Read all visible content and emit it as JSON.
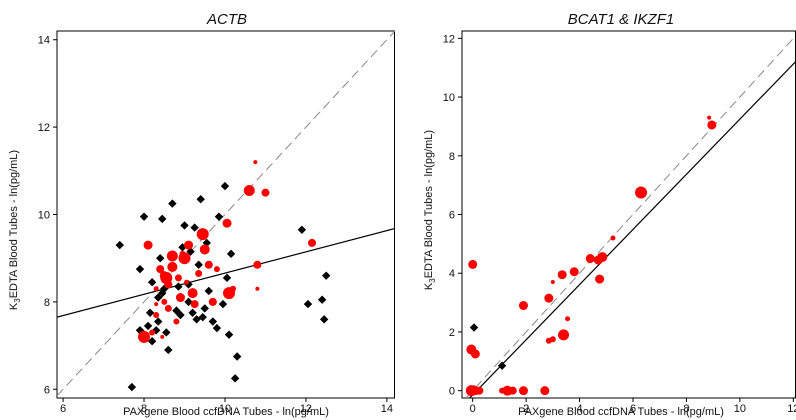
{
  "chart_data": [
    {
      "type": "scatter",
      "title": "ACTB",
      "xlabel": "PAXgene Blood ccfDNA Tubes - ln(pg/mL)",
      "ylabel_parts": [
        "K",
        "3",
        "EDTA Blood Tubes - ln(pg/mL)"
      ],
      "xlim": [
        5.85,
        14.2
      ],
      "ylim": [
        5.8,
        14.2
      ],
      "xticks": [
        6,
        8,
        10,
        12,
        14
      ],
      "yticks": [
        6,
        8,
        10,
        12,
        14
      ],
      "tick_labels_x": [
        "6",
        "8",
        "10",
        "12",
        "14"
      ],
      "tick_labels_y": [
        "6",
        "8",
        "10",
        "12",
        "14"
      ],
      "identity_line": true,
      "regression_line": [
        [
          5.85,
          7.65
        ],
        [
          14.2,
          9.68
        ]
      ],
      "colors": {
        "group_black": "#000000",
        "group_red": "#ff0000",
        "identity": "#888888"
      },
      "series": [
        {
          "marker": "diamond",
          "color": "#000000",
          "points": [
            [
              7.4,
              9.3
            ],
            [
              7.7,
              6.05
            ],
            [
              7.9,
              7.35
            ],
            [
              7.95,
              7.3
            ],
            [
              7.9,
              8.75
            ],
            [
              8.0,
              9.95
            ],
            [
              8.1,
              7.45
            ],
            [
              8.2,
              7.1
            ],
            [
              8.15,
              7.75
            ],
            [
              8.2,
              8.45
            ],
            [
              8.3,
              7.35
            ],
            [
              8.35,
              7.55
            ],
            [
              8.35,
              8.1
            ],
            [
              8.4,
              9.0
            ],
            [
              8.45,
              9.9
            ],
            [
              8.45,
              8.2
            ],
            [
              8.5,
              8.3
            ],
            [
              8.55,
              7.3
            ],
            [
              8.6,
              6.9
            ],
            [
              8.7,
              10.25
            ],
            [
              8.8,
              7.8
            ],
            [
              8.85,
              8.35
            ],
            [
              8.9,
              7.7
            ],
            [
              8.95,
              9.25
            ],
            [
              9.0,
              9.75
            ],
            [
              9.1,
              8.4
            ],
            [
              9.1,
              8.0
            ],
            [
              9.15,
              9.15
            ],
            [
              9.2,
              7.75
            ],
            [
              9.25,
              9.7
            ],
            [
              9.3,
              7.6
            ],
            [
              9.35,
              8.85
            ],
            [
              9.4,
              10.35
            ],
            [
              9.45,
              7.65
            ],
            [
              9.5,
              7.85
            ],
            [
              9.55,
              9.35
            ],
            [
              9.6,
              8.25
            ],
            [
              9.7,
              7.55
            ],
            [
              9.8,
              7.4
            ],
            [
              9.85,
              9.95
            ],
            [
              9.95,
              7.95
            ],
            [
              10.0,
              10.65
            ],
            [
              10.05,
              8.55
            ],
            [
              10.1,
              7.25
            ],
            [
              10.15,
              9.1
            ],
            [
              10.25,
              6.25
            ],
            [
              10.3,
              6.75
            ],
            [
              11.9,
              9.65
            ],
            [
              12.05,
              7.95
            ],
            [
              12.4,
              8.05
            ],
            [
              12.5,
              8.6
            ],
            [
              12.45,
              7.6
            ]
          ]
        },
        {
          "marker": "circle",
          "color": "#ff0000",
          "points": [
            [
              8.0,
              7.2,
              6
            ],
            [
              8.1,
              9.3,
              4.5
            ],
            [
              8.3,
              7.7,
              3
            ],
            [
              8.4,
              8.75,
              4
            ],
            [
              8.5,
              8.6,
              4.5
            ],
            [
              8.55,
              8.55,
              6
            ],
            [
              8.6,
              8.4,
              4
            ],
            [
              8.5,
              8.0,
              3
            ],
            [
              8.3,
              7.95,
              2
            ],
            [
              8.7,
              8.8,
              5
            ],
            [
              8.7,
              9.05,
              5.5
            ],
            [
              8.8,
              7.55,
              3
            ],
            [
              8.85,
              8.55,
              3.5
            ],
            [
              8.9,
              8.1,
              4.5
            ],
            [
              9.0,
              9.0,
              6
            ],
            [
              9.1,
              9.3,
              4.5
            ],
            [
              9.2,
              8.2,
              5
            ],
            [
              9.25,
              7.95,
              4
            ],
            [
              9.35,
              8.65,
              3.5
            ],
            [
              9.45,
              9.55,
              6
            ],
            [
              9.5,
              9.2,
              5
            ],
            [
              9.6,
              8.85,
              4
            ],
            [
              9.7,
              8.0,
              4
            ],
            [
              9.8,
              8.75,
              3
            ],
            [
              10.05,
              9.8,
              4.5
            ],
            [
              10.1,
              8.2,
              6
            ],
            [
              10.2,
              8.3,
              3
            ],
            [
              10.6,
              10.55,
              5.5
            ],
            [
              10.75,
              11.2,
              2
            ],
            [
              10.8,
              8.85,
              4
            ],
            [
              10.8,
              8.3,
              2
            ],
            [
              11.0,
              10.5,
              4
            ],
            [
              12.15,
              9.35,
              4
            ],
            [
              8.2,
              7.3,
              3
            ],
            [
              8.45,
              7.2,
              2
            ],
            [
              8.6,
              7.85,
              3.5
            ],
            [
              8.95,
              9.1,
              3
            ],
            [
              9.05,
              8.45,
              2.5
            ],
            [
              8.3,
              8.3,
              2.5
            ]
          ]
        }
      ]
    },
    {
      "type": "scatter",
      "title": "BCAT1 & IKZF1",
      "xlabel": "PAXgene Blood ccfDNA Tubes - ln(pg/mL)",
      "ylabel_parts": [
        "K",
        "3",
        "EDTA Blood Tubes - ln(pg/mL)"
      ],
      "xlim": [
        -0.4,
        12.1
      ],
      "ylim": [
        -0.25,
        12.25
      ],
      "xticks": [
        0,
        2,
        4,
        6,
        8,
        10,
        12
      ],
      "yticks": [
        0,
        2,
        4,
        6,
        8,
        10,
        12
      ],
      "tick_labels_x": [
        "0",
        "2",
        "4",
        "6",
        "8",
        "10",
        "12"
      ],
      "tick_labels_y": [
        "0",
        "2",
        "4",
        "6",
        "8",
        "10",
        "12"
      ],
      "identity_line": true,
      "regression_line": [
        [
          -0.4,
          -0.52
        ],
        [
          12.1,
          11.22
        ]
      ],
      "series": [
        {
          "marker": "diamond",
          "color": "#000000",
          "points": [
            [
              0.05,
              2.15
            ],
            [
              1.1,
              0.85
            ],
            [
              0.05,
              0.05
            ]
          ]
        },
        {
          "marker": "circle",
          "color": "#ff0000",
          "points": [
            [
              0.0,
              4.3,
              4.5
            ],
            [
              -0.05,
              1.4,
              5
            ],
            [
              0.1,
              1.25,
              4.5
            ],
            [
              -0.05,
              0.0,
              5.5
            ],
            [
              0.1,
              0.0,
              4.5
            ],
            [
              0.25,
              0.0,
              4
            ],
            [
              1.1,
              0.0,
              3
            ],
            [
              1.3,
              0.0,
              5
            ],
            [
              1.5,
              0.0,
              4
            ],
            [
              1.9,
              0.0,
              4.5
            ],
            [
              2.7,
              0.0,
              4.5
            ],
            [
              1.9,
              2.9,
              4.5
            ],
            [
              2.85,
              3.15,
              4.5
            ],
            [
              2.85,
              1.7,
              3
            ],
            [
              3.0,
              3.7,
              2
            ],
            [
              3.0,
              1.75,
              3
            ],
            [
              3.35,
              3.95,
              4.5
            ],
            [
              3.4,
              1.9,
              5.5
            ],
            [
              3.55,
              2.45,
              2.5
            ],
            [
              3.8,
              4.05,
              4.5
            ],
            [
              4.4,
              4.5,
              4.5
            ],
            [
              4.7,
              4.45,
              4.5
            ],
            [
              4.75,
              3.8,
              4.5
            ],
            [
              4.85,
              4.55,
              5
            ],
            [
              5.25,
              5.2,
              2.5
            ],
            [
              6.3,
              6.75,
              6
            ],
            [
              8.85,
              9.3,
              2
            ],
            [
              8.95,
              9.05,
              4.5
            ]
          ]
        }
      ]
    }
  ]
}
